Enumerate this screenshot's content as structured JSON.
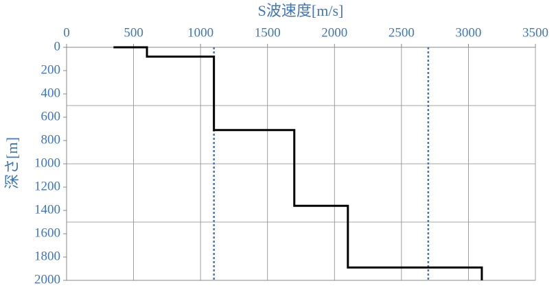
{
  "chart_data": {
    "type": "line",
    "xlabel": "S波速度[m/s]",
    "ylabel": "深さ[m]",
    "xlim": [
      0,
      3500
    ],
    "xticks": [
      0,
      500,
      1000,
      1500,
      2000,
      2500,
      3000,
      3500
    ],
    "ylim": [
      0,
      2000
    ],
    "yticks": [
      0,
      200,
      400,
      600,
      800,
      1000,
      1200,
      1400,
      1600,
      1800,
      2000
    ],
    "y_inverted": true,
    "x_axis_top": true,
    "grid": true,
    "ygrid_lines": [
      500,
      1000,
      1500
    ],
    "ref_lines": {
      "color": "#3a78d4",
      "x": [
        1100,
        2700
      ]
    },
    "series": [
      {
        "color": "#000000",
        "x": [
          350,
          600,
          600,
          1100,
          1100,
          1700,
          1700,
          2100,
          2100,
          3100,
          3100
        ],
        "values": [
          0,
          0,
          80,
          80,
          710,
          710,
          1360,
          1360,
          1890,
          1890,
          2000
        ]
      }
    ]
  }
}
